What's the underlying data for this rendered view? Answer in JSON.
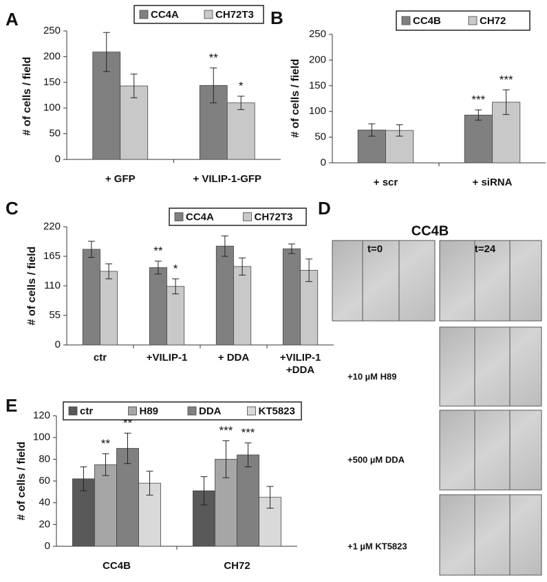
{
  "panel_labels": [
    "A",
    "B",
    "C",
    "D",
    "E"
  ],
  "chart_data": [
    {
      "type": "bar",
      "y_label": "# of cells / field",
      "categories": [
        "+ GFP",
        "+ VILIP-1-GFP"
      ],
      "series": [
        {
          "name": "CC4A",
          "color": "#808080",
          "values": [
            209,
            144
          ],
          "errors": [
            38,
            34
          ],
          "annotations": [
            null,
            "**"
          ]
        },
        {
          "name": "CH72T3",
          "color": "#c8c8c8",
          "values": [
            143,
            110
          ],
          "errors": [
            23,
            13
          ],
          "annotations": [
            null,
            "*"
          ]
        }
      ],
      "ylim": [
        0,
        250
      ],
      "yticks": [
        0,
        50,
        100,
        150,
        200,
        250
      ]
    },
    {
      "type": "bar",
      "y_label": "# of cells / field",
      "categories": [
        "+ scr",
        "+ siRNA"
      ],
      "series": [
        {
          "name": "CC4B",
          "color": "#808080",
          "values": [
            64,
            93
          ],
          "errors": [
            12,
            10
          ],
          "annotations": [
            null,
            "***"
          ]
        },
        {
          "name": "CH72",
          "color": "#c8c8c8",
          "values": [
            63,
            118
          ],
          "errors": [
            11,
            24
          ],
          "annotations": [
            null,
            "***"
          ]
        }
      ],
      "ylim": [
        0,
        250
      ],
      "yticks": [
        0,
        50,
        100,
        150,
        200,
        250
      ]
    },
    {
      "type": "bar",
      "y_label": "# of cells / field",
      "categories": [
        "ctr",
        "+VILIP-1",
        "+ DDA",
        "+VILIP-1 +DDA"
      ],
      "series": [
        {
          "name": "CC4A",
          "color": "#808080",
          "values": [
            178,
            144,
            184,
            179
          ],
          "errors": [
            15,
            12,
            19,
            9
          ],
          "annotations": [
            null,
            "**",
            null,
            null
          ]
        },
        {
          "name": "CH72T3",
          "color": "#c8c8c8",
          "values": [
            137,
            109,
            146,
            139
          ],
          "errors": [
            14,
            14,
            16,
            21
          ],
          "annotations": [
            null,
            "*",
            null,
            null
          ]
        }
      ],
      "ylim": [
        0,
        220
      ],
      "yticks": [
        0,
        55,
        110,
        165,
        220
      ]
    },
    {
      "type": "bar",
      "y_label": "# of cells / field",
      "categories": [
        "CC4B",
        "CH72"
      ],
      "series": [
        {
          "name": "ctr",
          "color": "#595959",
          "values": [
            62,
            51
          ],
          "errors": [
            11,
            13
          ],
          "annotations": [
            null,
            null
          ]
        },
        {
          "name": "H89",
          "color": "#a6a6a6",
          "values": [
            75,
            80
          ],
          "errors": [
            10,
            17
          ],
          "annotations": [
            "**",
            "***"
          ]
        },
        {
          "name": "DDA",
          "color": "#808080",
          "values": [
            90,
            84
          ],
          "errors": [
            14,
            11
          ],
          "annotations": [
            "**",
            "***"
          ]
        },
        {
          "name": "KT5823",
          "color": "#d9d9d9",
          "values": [
            58,
            45
          ],
          "errors": [
            11,
            10
          ],
          "annotations": [
            null,
            null
          ]
        }
      ],
      "ylim": [
        0,
        120
      ],
      "yticks": [
        0,
        20,
        40,
        60,
        80,
        100,
        120
      ]
    }
  ],
  "panel_d": {
    "title": "CC4B",
    "time_labels": [
      "t=0",
      "t=24"
    ],
    "treatments": [
      "+10 µM H89",
      "+500 µM DDA",
      "+1 µM KT5823"
    ]
  }
}
